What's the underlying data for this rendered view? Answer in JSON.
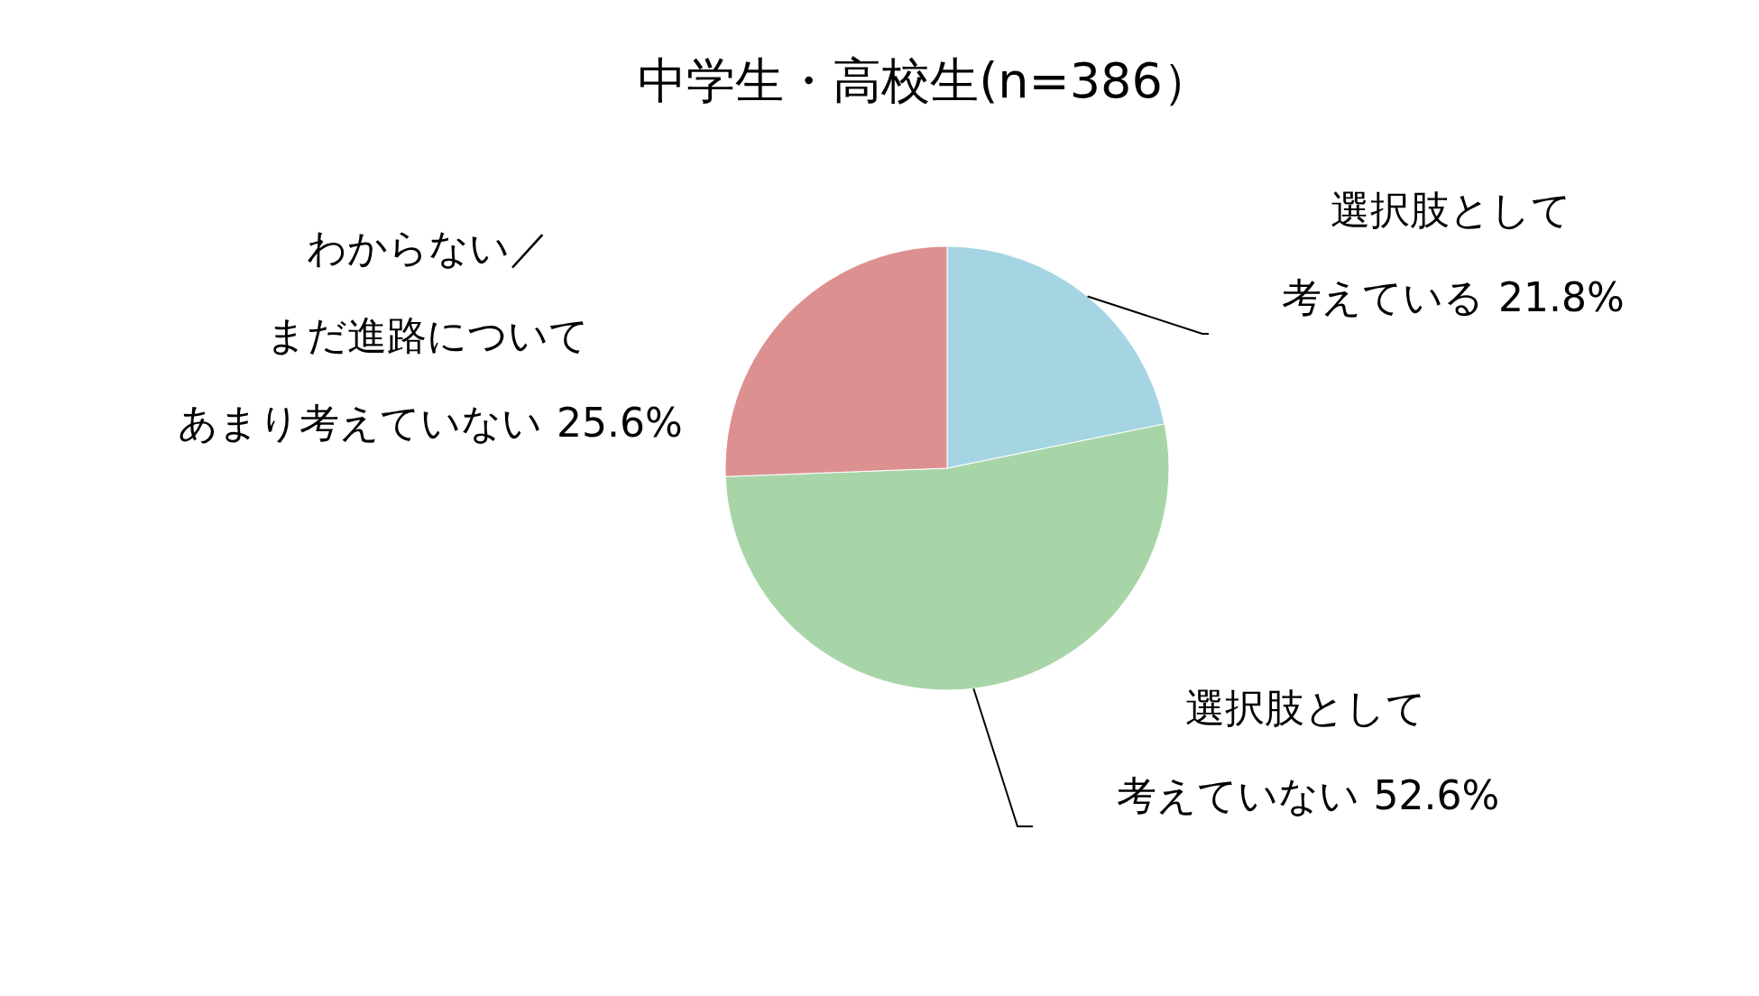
{
  "chart_data": {
    "type": "pie",
    "title": "中学生・高校生(n=386）",
    "categories": [
      "選択肢として考えている",
      "選択肢として考えていない",
      "わからない／まだ進路についてあまり考えていない"
    ],
    "values": [
      21.8,
      52.6,
      25.6
    ],
    "colors": [
      "#a5d5e2",
      "#a8d5a8",
      "#dc9190"
    ],
    "value_labels": [
      "21.8%",
      "52.6%",
      "25.6%"
    ]
  }
}
